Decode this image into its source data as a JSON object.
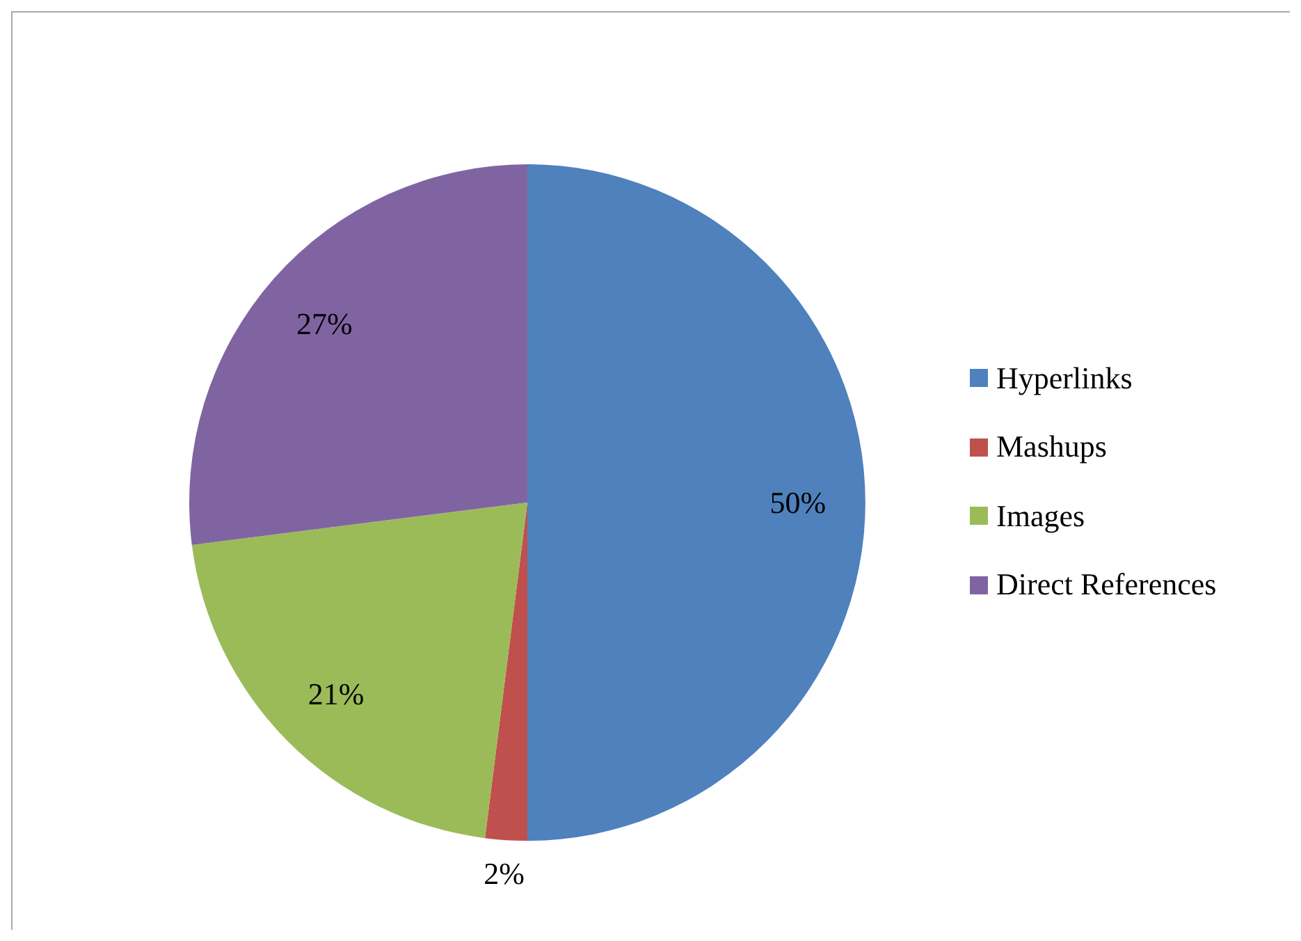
{
  "chart_data": {
    "type": "pie",
    "categories": [
      "Hyperlinks",
      "Mashups",
      "Images",
      "Direct References"
    ],
    "values": [
      50,
      2,
      21,
      27
    ],
    "colors": [
      "#4f81bd",
      "#c0504d",
      "#9bbb59",
      "#8064a2"
    ],
    "value_labels": [
      "50%",
      "2%",
      "21%",
      "27%"
    ],
    "legend": "right"
  }
}
